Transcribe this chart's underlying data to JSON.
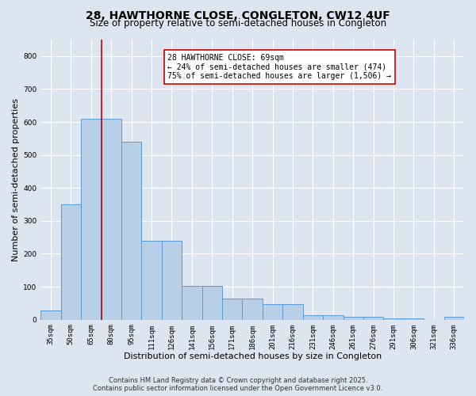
{
  "title1": "28, HAWTHORNE CLOSE, CONGLETON, CW12 4UF",
  "title2": "Size of property relative to semi-detached houses in Congleton",
  "xlabel": "Distribution of semi-detached houses by size in Congleton",
  "ylabel": "Number of semi-detached properties",
  "bar_labels": [
    "35sqm",
    "50sqm",
    "65sqm",
    "80sqm",
    "95sqm",
    "111sqm",
    "126sqm",
    "141sqm",
    "156sqm",
    "171sqm",
    "186sqm",
    "201sqm",
    "216sqm",
    "231sqm",
    "246sqm",
    "261sqm",
    "276sqm",
    "291sqm",
    "306sqm",
    "321sqm",
    "336sqm"
  ],
  "bar_values": [
    27,
    350,
    610,
    610,
    540,
    240,
    240,
    103,
    103,
    65,
    65,
    47,
    47,
    13,
    13,
    8,
    8,
    3,
    3,
    0,
    8
  ],
  "bar_color": "#b8cfe8",
  "bar_edge_color": "#5b9bd5",
  "background_color": "#dde5f0",
  "grid_color": "#ffffff",
  "vline_color": "#cc0000",
  "vline_pos": 2.5,
  "annotation_title": "28 HAWTHORNE CLOSE: 69sqm",
  "annotation_line1": "← 24% of semi-detached houses are smaller (474)",
  "annotation_line2": "75% of semi-detached houses are larger (1,506) →",
  "annotation_box_color": "#ffffff",
  "annotation_box_edge": "#cc0000",
  "ylim": [
    0,
    850
  ],
  "yticks": [
    0,
    100,
    200,
    300,
    400,
    500,
    600,
    700,
    800
  ],
  "footer1": "Contains HM Land Registry data © Crown copyright and database right 2025.",
  "footer2": "Contains public sector information licensed under the Open Government Licence v3.0.",
  "title_fontsize": 10,
  "subtitle_fontsize": 8.5,
  "tick_fontsize": 6.5,
  "ylabel_fontsize": 8,
  "xlabel_fontsize": 8,
  "footer_fontsize": 6,
  "annot_fontsize": 7
}
